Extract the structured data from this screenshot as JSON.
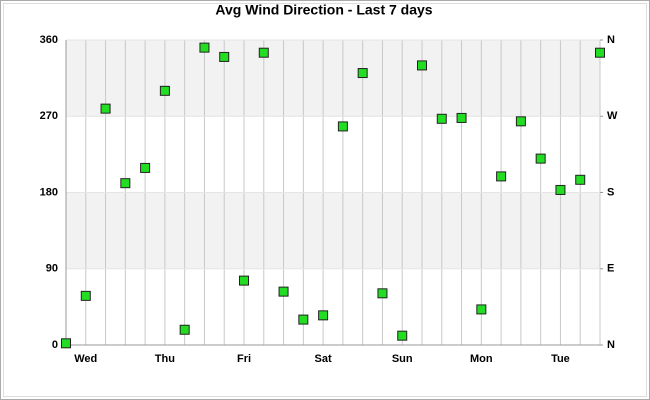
{
  "chart_data": {
    "type": "scatter",
    "title": "Avg Wind Direction - Last 7 days",
    "categories": [
      null,
      "Wed",
      null,
      null,
      null,
      "Thu",
      null,
      null,
      null,
      "Fri",
      null,
      null,
      null,
      "Sat",
      null,
      null,
      null,
      "Sun",
      null,
      null,
      null,
      "Mon",
      null,
      null,
      null,
      "Tue",
      null,
      null
    ],
    "values": [
      2,
      58,
      279,
      191,
      209,
      300,
      18,
      351,
      340,
      76,
      345,
      63,
      30,
      35,
      258,
      321,
      61,
      11,
      330,
      267,
      268,
      42,
      199,
      264,
      220,
      183,
      195,
      345
    ],
    "color": "#22dd22",
    "ylim": [
      0,
      360
    ],
    "yticks": [
      0,
      90,
      180,
      270,
      360
    ],
    "y2lim": [
      0,
      360
    ],
    "y2ticks": [
      {
        "value": 0,
        "label": "N"
      },
      {
        "value": 90,
        "label": "E"
      },
      {
        "value": 180,
        "label": "S"
      },
      {
        "value": 270,
        "label": "W"
      },
      {
        "value": 360,
        "label": "N"
      }
    ],
    "grid": true
  }
}
